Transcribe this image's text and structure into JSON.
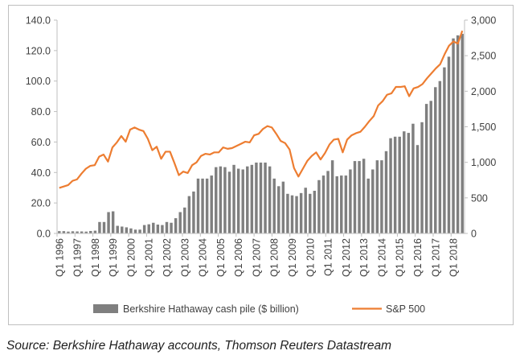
{
  "chart_data": {
    "type": "bar+line",
    "series": [
      {
        "name": "Berkshire Hathaway cash pile ($ billion)",
        "type": "bar",
        "axis": "left",
        "color": "#7f7f7f",
        "values": [
          1.5,
          1.5,
          1.2,
          1.4,
          1.3,
          1.3,
          1.2,
          1.6,
          1.8,
          7.5,
          7.5,
          14.0,
          14.5,
          5.0,
          4.5,
          4.0,
          3.3,
          2.5,
          2.5,
          5.5,
          6.0,
          7.0,
          5.8,
          5.5,
          7.5,
          7.0,
          10.0,
          14.0,
          17.0,
          24.5,
          27.5,
          36.0,
          36.0,
          36.0,
          38.0,
          43.5,
          44.0,
          43.5,
          40.5,
          45.0,
          42.5,
          42.0,
          44.0,
          45.0,
          46.5,
          46.5,
          46.5,
          44.0,
          36.0,
          31.0,
          34.0,
          26.0,
          25.0,
          24.5,
          26.5,
          30.0,
          26.0,
          28.0,
          35.0,
          38.0,
          41.0,
          48.0,
          37.5,
          38.0,
          38.0,
          42.0,
          47.5,
          47.5,
          49.0,
          36.0,
          42.0,
          48.0,
          48.0,
          54.0,
          62.5,
          63.5,
          63.5,
          67.0,
          66.0,
          72.0,
          58.0,
          73.0,
          85.0,
          87.0,
          96.0,
          100.0,
          109.0,
          116.0,
          128.0,
          130.0,
          131.0
        ]
      },
      {
        "name": "S&P 500",
        "type": "line",
        "axis": "right",
        "color": "#ed7d31",
        "values": [
          640,
          660,
          680,
          740,
          760,
          840,
          910,
          950,
          960,
          1080,
          1110,
          1010,
          1210,
          1280,
          1370,
          1290,
          1460,
          1490,
          1460,
          1440,
          1330,
          1170,
          1220,
          1050,
          1150,
          1150,
          990,
          820,
          870,
          850,
          960,
          1000,
          1090,
          1120,
          1110,
          1140,
          1140,
          1210,
          1190,
          1200,
          1230,
          1260,
          1290,
          1280,
          1380,
          1400,
          1470,
          1510,
          1490,
          1400,
          1300,
          1270,
          1180,
          920,
          800,
          910,
          1020,
          1090,
          1140,
          1040,
          1130,
          1250,
          1320,
          1330,
          1140,
          1320,
          1380,
          1410,
          1430,
          1500,
          1580,
          1650,
          1800,
          1860,
          1950,
          1970,
          2060,
          2060,
          2070,
          1930,
          2040,
          2060,
          2100,
          2180,
          2250,
          2320,
          2380,
          2520,
          2640,
          2700,
          2670,
          2850
        ]
      }
    ],
    "x_tick_labels": [
      "Q1 1996",
      "Q1 1997",
      "Q1 1998",
      "Q1 1999",
      "Q1 2000",
      "Q1 2001",
      "Q1 2002",
      "Q1 2003",
      "Q1 2004",
      "Q1 2005",
      "Q1 2006",
      "Q1 2007",
      "Q1 2008",
      "Q1 2009",
      "Q1 2010",
      "Q1 2011",
      "Q1 2012",
      "Q1 2013",
      "Q1 2014",
      "Q1 2015",
      "Q1 2016",
      "Q1 2017",
      "Q1 2018"
    ],
    "left_axis": {
      "ylim": [
        0,
        140
      ],
      "ticks": [
        "0.0",
        "20.0",
        "40.0",
        "60.0",
        "80.0",
        "100.0",
        "120.0",
        "140.0"
      ]
    },
    "right_axis": {
      "ylim": [
        0,
        3000
      ],
      "ticks": [
        "0",
        "500",
        "1,000",
        "1,500",
        "2,000",
        "2,500",
        "3,000"
      ]
    },
    "grid": false,
    "legend_placement": "bottom"
  },
  "source": "Source: Berkshire Hathaway accounts, Thomson Reuters Datastream"
}
